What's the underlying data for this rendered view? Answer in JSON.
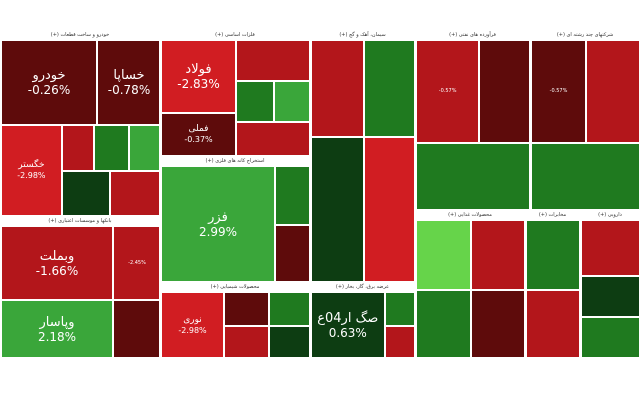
{
  "colors": {
    "dark_red": "#5e0b0b",
    "deep_red": "#7a1010",
    "red": "#b3161b",
    "bright_red": "#d11d22",
    "pink_red": "#c83a3a",
    "dark_green": "#0d3d12",
    "green": "#1f7a1f",
    "bright_green": "#3aa63a",
    "lime": "#66d44a"
  },
  "sectors": [
    {
      "title": "خودرو و ساخت قطعات (+)",
      "tiles": [
        {
          "name": "خودرو",
          "change": "-0.26%",
          "color": "dark_red",
          "size": "big"
        },
        {
          "name": "خساپا",
          "change": "-0.78%",
          "color": "dark_red",
          "size": "big"
        },
        {
          "name": "خگستر",
          "change": "-2.98%",
          "color": "bright_red",
          "size": "med"
        },
        {
          "name": "",
          "change": "",
          "color": "red",
          "size": ""
        },
        {
          "name": "",
          "change": "",
          "color": "green",
          "size": ""
        },
        {
          "name": "",
          "change": "",
          "color": "bright_green",
          "size": ""
        },
        {
          "name": "",
          "change": "",
          "color": "dark_green",
          "size": ""
        },
        {
          "name": "",
          "change": "",
          "color": "red",
          "size": ""
        }
      ]
    },
    {
      "title": "فلزات اساسی (+)",
      "tiles": [
        {
          "name": "فولاد",
          "change": "-2.83%",
          "color": "bright_red",
          "size": "big"
        },
        {
          "name": "فملی",
          "change": "-0.37%",
          "color": "dark_red",
          "size": "med"
        },
        {
          "name": "",
          "change": "",
          "color": "red",
          "size": ""
        },
        {
          "name": "",
          "change": "",
          "color": "green",
          "size": ""
        },
        {
          "name": "",
          "change": "",
          "color": "bright_green",
          "size": ""
        },
        {
          "name": "",
          "change": "",
          "color": "red",
          "size": ""
        }
      ]
    },
    {
      "title": "محصولات شیمیایی (+)",
      "tiles": [
        {
          "name": "نوری",
          "change": "-2.98%",
          "color": "bright_red",
          "size": "med"
        },
        {
          "name": "",
          "change": "",
          "color": "dark_red",
          "size": ""
        },
        {
          "name": "",
          "change": "",
          "color": "green",
          "size": ""
        },
        {
          "name": "",
          "change": "",
          "color": "red",
          "size": ""
        },
        {
          "name": "",
          "change": "",
          "color": "dark_green",
          "size": ""
        }
      ]
    },
    {
      "title": "بانکها و موسسات اعتباری (+)",
      "tiles": [
        {
          "name": "وبملت",
          "change": "-1.66%",
          "color": "red",
          "size": "big"
        },
        {
          "name": "وپاسار",
          "change": "2.18%",
          "color": "bright_green",
          "size": "big"
        },
        {
          "name": "",
          "change": "-2.45%",
          "color": "red",
          "size": ""
        },
        {
          "name": "",
          "change": "",
          "color": "dark_red",
          "size": ""
        }
      ]
    },
    {
      "title": "استخراج کانه های فلزی (+)",
      "tiles": [
        {
          "name": "فزر",
          "change": "2.99%",
          "color": "bright_green",
          "size": "big"
        },
        {
          "name": "",
          "change": "",
          "color": "green",
          "size": ""
        },
        {
          "name": "",
          "change": "",
          "color": "dark_red",
          "size": ""
        }
      ]
    },
    {
      "title": "عرضه برق، گاز، بخار (+)",
      "tiles": [
        {
          "name": "صگ ار04ع",
          "change": "0.63%",
          "color": "dark_green",
          "size": "big"
        },
        {
          "name": "",
          "change": "",
          "color": "green",
          "size": ""
        },
        {
          "name": "",
          "change": "",
          "color": "red",
          "size": ""
        }
      ]
    },
    {
      "title": "سیمان، آهک و گچ (+)",
      "tiles": [
        {
          "name": "",
          "change": "",
          "color": "red",
          "size": ""
        },
        {
          "name": "",
          "change": "",
          "color": "green",
          "size": ""
        },
        {
          "name": "",
          "change": "",
          "color": "dark_green",
          "size": ""
        },
        {
          "name": "",
          "change": "",
          "color": "bright_red",
          "size": ""
        }
      ]
    },
    {
      "title": "فرآورده های نفتی (+)",
      "tiles": [
        {
          "name": "",
          "change": "-0.57%",
          "color": "red",
          "size": ""
        },
        {
          "name": "",
          "change": "",
          "color": "dark_red",
          "size": ""
        },
        {
          "name": "",
          "change": "",
          "color": "green",
          "size": ""
        }
      ]
    },
    {
      "title": "شرکتهای چند رشته ای (+)",
      "tiles": [
        {
          "name": "",
          "change": "-0.57%",
          "color": "dark_red",
          "size": ""
        },
        {
          "name": "",
          "change": "",
          "color": "red",
          "size": ""
        },
        {
          "name": "",
          "change": "",
          "color": "green",
          "size": ""
        }
      ]
    },
    {
      "title": "محصولات غذایی (+)",
      "tiles": [
        {
          "name": "",
          "change": "",
          "color": "lime",
          "size": ""
        },
        {
          "name": "",
          "change": "",
          "color": "red",
          "size": ""
        },
        {
          "name": "",
          "change": "",
          "color": "green",
          "size": ""
        },
        {
          "name": "",
          "change": "",
          "color": "dark_red",
          "size": ""
        }
      ]
    },
    {
      "title": "مخابرات (+)",
      "tiles": [
        {
          "name": "",
          "change": "",
          "color": "green",
          "size": ""
        },
        {
          "name": "",
          "change": "",
          "color": "red",
          "size": ""
        }
      ]
    },
    {
      "title": "دارویی (+)",
      "tiles": [
        {
          "name": "",
          "change": "",
          "color": "red",
          "size": ""
        },
        {
          "name": "",
          "change": "",
          "color": "dark_green",
          "size": ""
        },
        {
          "name": "",
          "change": "",
          "color": "green",
          "size": ""
        }
      ]
    }
  ]
}
